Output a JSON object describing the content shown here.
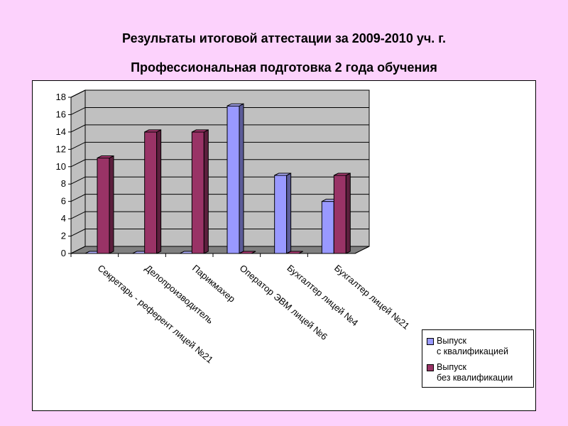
{
  "title": "Результаты итоговой аттестации за 2009-2010 уч. г.",
  "subtitle": "Профессиональная подготовка 2 года обучения",
  "chart_data": {
    "type": "bar",
    "categories": [
      "Секретарь - референт лицей №21",
      "Делопроизводитель",
      "Парикмахер",
      "Оператор ЭВМ лицей №6",
      "Бухгалтер лицей №4",
      "Бухгалтер лицей №21"
    ],
    "series": [
      {
        "name": "Выпуск с квалификацией",
        "name_lines": [
          "Выпуск",
          "с квалификацией"
        ],
        "color": "#9999ff",
        "values": [
          0,
          0,
          0,
          17,
          9,
          6
        ]
      },
      {
        "name": "Выпуск без квалификации",
        "name_lines": [
          "Выпуск",
          "без квалификации"
        ],
        "color": "#993366",
        "values": [
          11,
          14,
          14,
          0,
          0,
          9
        ]
      }
    ],
    "yticks": [
      0,
      2,
      4,
      6,
      8,
      10,
      12,
      14,
      16,
      18
    ],
    "ylim": [
      0,
      18
    ],
    "grid": true,
    "legend_position": "bottom-right",
    "wall_color": "#c0c0c0",
    "floor_color": "#808080"
  }
}
